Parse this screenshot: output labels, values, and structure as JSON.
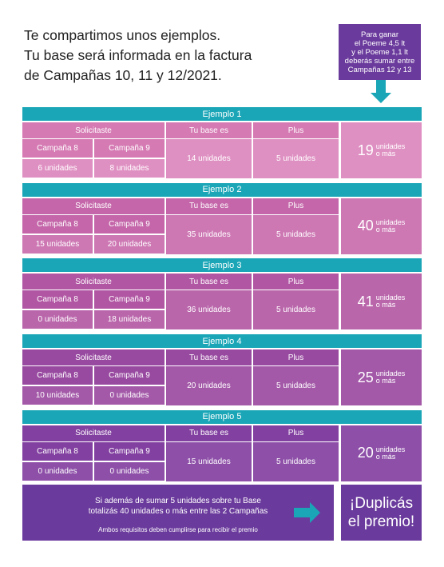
{
  "intro": [
    "Te compartimos unos ejemplos.",
    "Tu base será informada en la factura",
    "de Campañas 10, 11 y 12/2021."
  ],
  "callout": [
    "Para ganar",
    "el Poeme 4,5 lt",
    "y el Poeme 1,1 lt",
    "deberás sumar entre",
    "Campañas 12 y 13"
  ],
  "examples": [
    {
      "title": "Ejemplo 1",
      "headers": [
        "Solicitaste",
        "Tu base es",
        "Plus"
      ],
      "campaigns": [
        "Campaña 8",
        "Campaña 9"
      ],
      "requested": [
        "6 unidades",
        "8 unidades"
      ],
      "base": "14 unidades",
      "plus": "5 unidades",
      "result": {
        "number": "19",
        "unit": "unidades",
        "suffix": "o más"
      }
    },
    {
      "title": "Ejemplo 2",
      "headers": [
        "Solicitaste",
        "Tu base es",
        "Plus"
      ],
      "campaigns": [
        "Campaña 8",
        "Campaña 9"
      ],
      "requested": [
        "15 unidades",
        "20 unidades"
      ],
      "base": "35 unidades",
      "plus": "5 unidades",
      "result": {
        "number": "40",
        "unit": "unidades",
        "suffix": "o más"
      }
    },
    {
      "title": "Ejemplo 3",
      "headers": [
        "Solicitaste",
        "Tu base es",
        "Plus"
      ],
      "campaigns": [
        "Campaña 8",
        "Campaña 9"
      ],
      "requested": [
        "0 unidades",
        "18 unidades"
      ],
      "base": "36 unidades",
      "plus": "5 unidades",
      "result": {
        "number": "41",
        "unit": "unidades",
        "suffix": "o más"
      }
    },
    {
      "title": "Ejemplo 4",
      "headers": [
        "Solicitaste",
        "Tu base es",
        "Plus"
      ],
      "campaigns": [
        "Campaña 8",
        "Campaña 9"
      ],
      "requested": [
        "10 unidades",
        "0 unidades"
      ],
      "base": "20 unidades",
      "plus": "5 unidades",
      "result": {
        "number": "25",
        "unit": "unidades",
        "suffix": "o más"
      }
    },
    {
      "title": "Ejemplo 5",
      "headers": [
        "Solicitaste",
        "Tu base es",
        "Plus"
      ],
      "campaigns": [
        "Campaña 8",
        "Campaña 9"
      ],
      "requested": [
        "0 unidades",
        "0 unidades"
      ],
      "base": "15 unidades",
      "plus": "5 unidades",
      "result": {
        "number": "20",
        "unit": "unidades",
        "suffix": "o más"
      }
    }
  ],
  "footer": {
    "lines": [
      "Si además de sumar 5 unidades sobre tu Base",
      "totalizás 40 unidades o más entre las 2 Campañas"
    ],
    "note": "Ambos requisitos deben cumplirse para recibir el premio",
    "highlight": [
      "¡Duplicás",
      "el premio!"
    ]
  }
}
